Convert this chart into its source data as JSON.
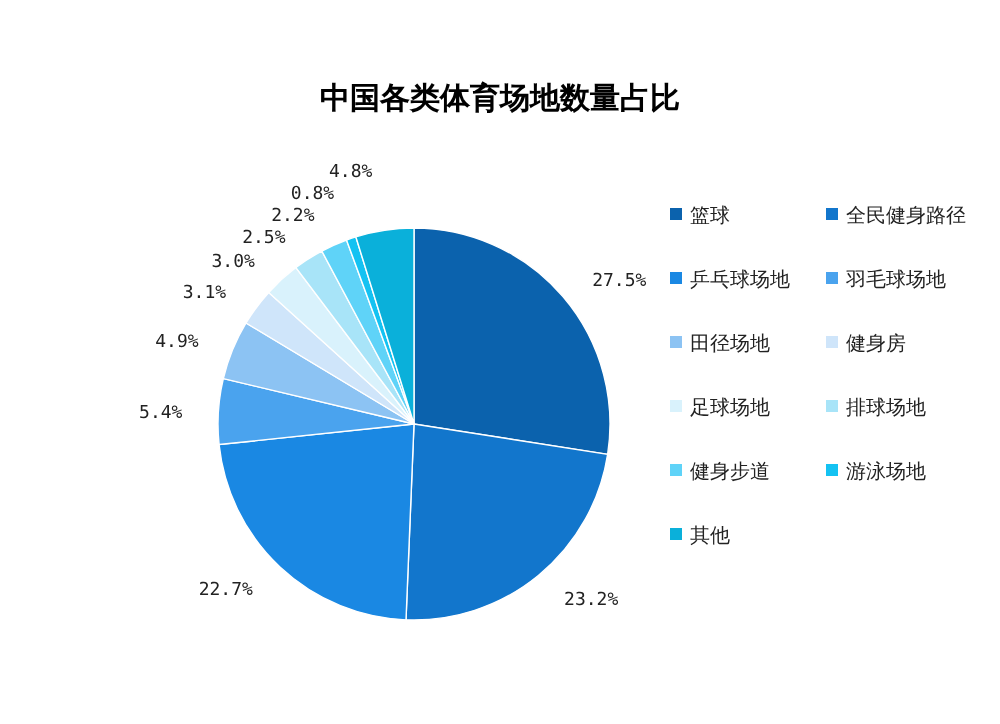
{
  "chart_data": {
    "type": "pie",
    "title": "中国各类体育场地数量占比",
    "categories": [
      "篮球",
      "全民健身路径",
      "乒乓球场地",
      "羽毛球场地",
      "田径场地",
      "健身房",
      "足球场地",
      "排球场地",
      "健身步道",
      "游泳场地",
      "其他"
    ],
    "values": [
      27.5,
      23.2,
      22.7,
      5.4,
      4.9,
      3.1,
      3.0,
      2.5,
      2.2,
      0.8,
      4.8
    ],
    "value_labels": [
      "27.5%",
      "23.2%",
      "22.7%",
      "5.4%",
      "4.9%",
      "3.1%",
      "3.0%",
      "2.5%",
      "2.2%",
      "0.8%",
      "4.8%"
    ],
    "colors": [
      "#0b62ad",
      "#1276cc",
      "#1a88e3",
      "#4aa3ee",
      "#8cc3f3",
      "#cfe5fa",
      "#d9f2fc",
      "#a8e4f8",
      "#5fd3f8",
      "#14c2f2",
      "#0ab0da"
    ],
    "legend": "right"
  }
}
